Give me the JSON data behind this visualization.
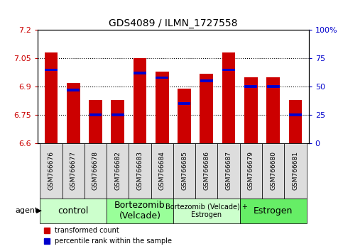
{
  "title": "GDS4089 / ILMN_1727558",
  "samples": [
    "GSM766676",
    "GSM766677",
    "GSM766678",
    "GSM766682",
    "GSM766683",
    "GSM766684",
    "GSM766685",
    "GSM766686",
    "GSM766687",
    "GSM766679",
    "GSM766680",
    "GSM766681"
  ],
  "transformed_count": [
    7.08,
    6.92,
    6.83,
    6.83,
    7.05,
    6.98,
    6.89,
    6.97,
    7.08,
    6.95,
    6.95,
    6.83
  ],
  "percentile_rank": [
    65,
    47,
    25,
    25,
    62,
    58,
    35,
    55,
    65,
    50,
    50,
    25
  ],
  "y_min": 6.6,
  "y_max": 7.2,
  "y_ticks": [
    6.6,
    6.75,
    6.9,
    7.05,
    7.2
  ],
  "y2_ticks": [
    0,
    25,
    50,
    75,
    100
  ],
  "bar_color": "#CC0000",
  "percentile_color": "#0000CC",
  "bar_width": 0.6,
  "groups": [
    {
      "label": "control",
      "start": 0,
      "end": 2,
      "color": "#CCFFCC",
      "fontsize": 9
    },
    {
      "label": "Bortezomib\n(Velcade)",
      "start": 3,
      "end": 5,
      "color": "#99FF99",
      "fontsize": 9
    },
    {
      "label": "Bortezomib (Velcade) +\nEstrogen",
      "start": 6,
      "end": 8,
      "color": "#CCFFCC",
      "fontsize": 7
    },
    {
      "label": "Estrogen",
      "start": 9,
      "end": 11,
      "color": "#66EE66",
      "fontsize": 9
    }
  ],
  "tick_label_bg": "#DDDDDD",
  "legend_items": [
    {
      "label": "transformed count",
      "color": "#CC0000"
    },
    {
      "label": "percentile rank within the sample",
      "color": "#0000CC"
    }
  ],
  "background_color": "#FFFFFF",
  "grid_color": "#000000",
  "tick_label_color_left": "#CC0000",
  "tick_label_color_right": "#0000CC"
}
